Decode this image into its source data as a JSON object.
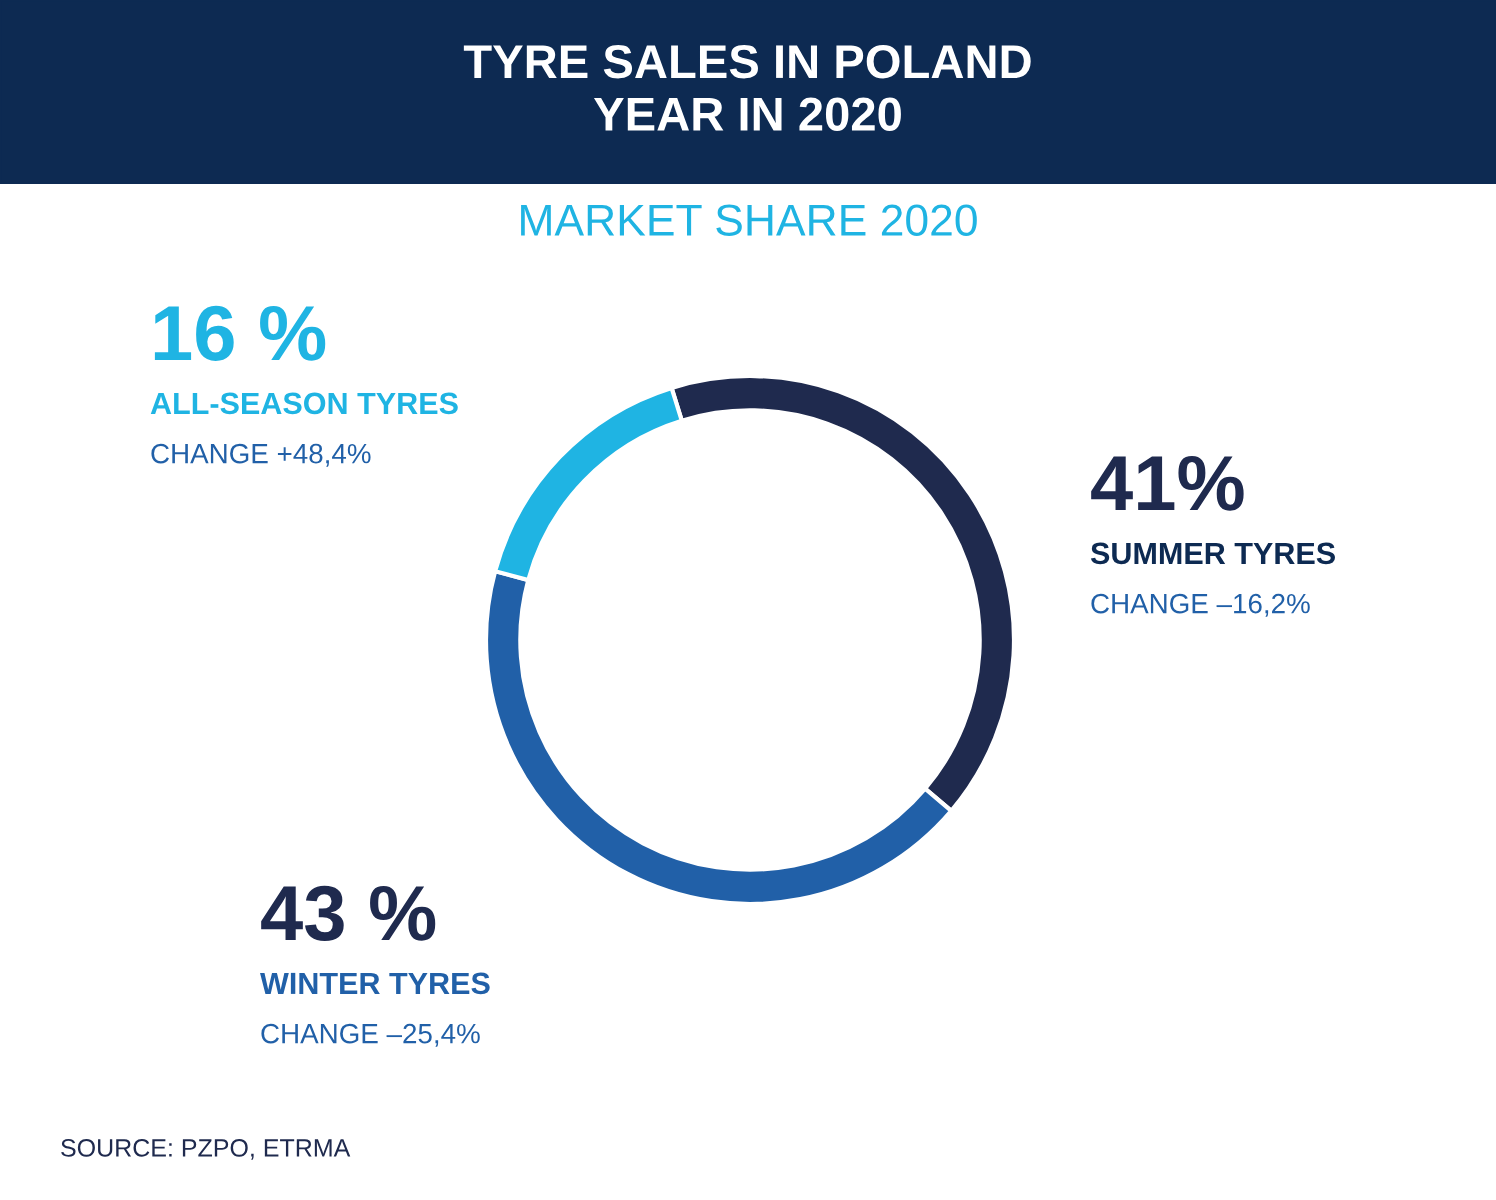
{
  "chart_data": {
    "type": "donut",
    "title": "TYRE SALES IN POLAND\nYEAR IN 2020",
    "subtitle": "MARKET SHARE 2020",
    "categories": [
      "SUMMER TYRES",
      "WINTER TYRES",
      "ALL-SEASON TYRES"
    ],
    "values": [
      41,
      43,
      16
    ],
    "value_labels": [
      "41%",
      "43 %",
      "16 %"
    ],
    "colors": [
      "#1f2a4e",
      "#2160a8",
      "#1fb4e3"
    ],
    "annotations": [
      "CHANGE –16,2%",
      "CHANGE –25,4%",
      "CHANGE +48,4%",
      "SOURCE: PZPO, ETRMA"
    ]
  }
}
